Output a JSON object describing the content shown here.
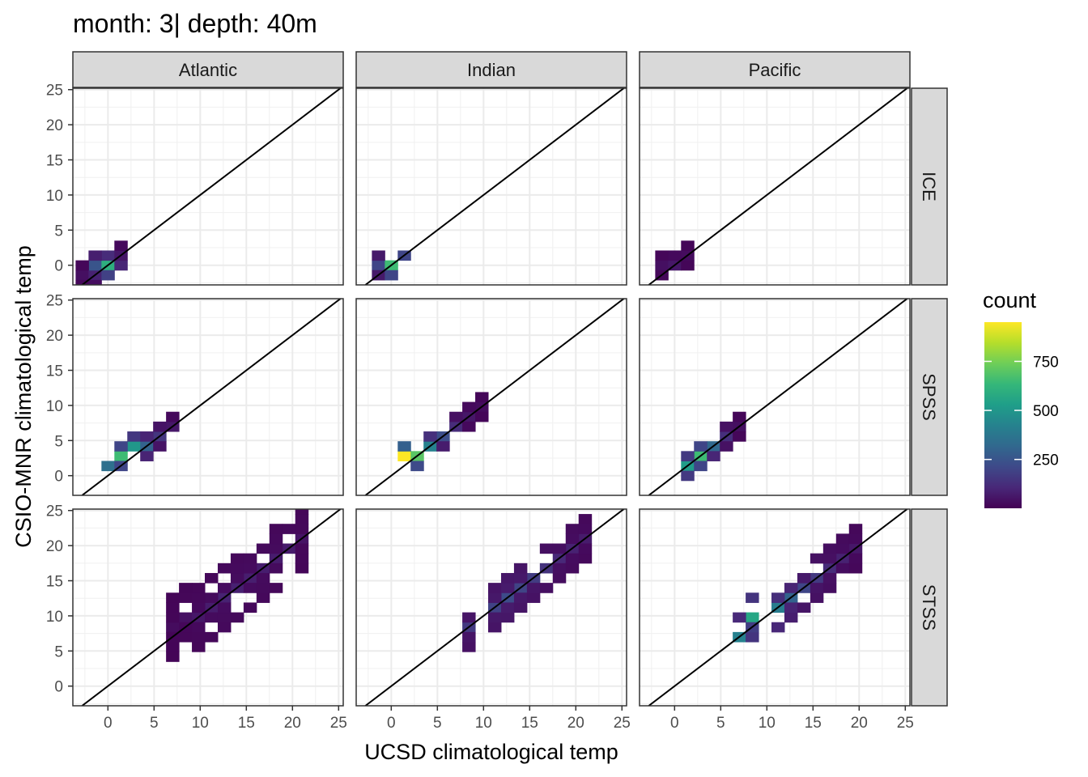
{
  "chart_data": {
    "type": "heatmap",
    "title": "month: 3| depth: 40m",
    "xlabel": "UCSD climatological temp",
    "ylabel": "CSIO-MNR climatological temp",
    "xlim": [
      -3.8,
      25.5
    ],
    "ylim": [
      -2.8,
      25.2
    ],
    "xticks": [
      0,
      5,
      10,
      15,
      20,
      25
    ],
    "yticks": [
      0,
      5,
      10,
      15,
      20,
      25
    ],
    "grid": true,
    "bin_width": 1.4,
    "reference_line": "y = x",
    "columns": [
      "Atlantic",
      "Indian",
      "Pacific"
    ],
    "rows": [
      "ICE",
      "SPSS",
      "STSS"
    ],
    "legend": {
      "title": "count",
      "position": "right",
      "range": [
        1,
        950
      ],
      "breaks": [
        250,
        500,
        750
      ],
      "colors": [
        "#440154",
        "#482878",
        "#3e4989",
        "#31688e",
        "#26828e",
        "#1f9e89",
        "#35b779",
        "#6ece58",
        "#b5de2b",
        "#fde725"
      ]
    },
    "panels": [
      {
        "column": "Atlantic",
        "row": "ICE",
        "samples": [
          {
            "x": -2.2,
            "y": -1.1,
            "count": 40
          },
          {
            "x": -0.8,
            "y": -1.1,
            "count": 90
          },
          {
            "x": -0.8,
            "y": 0.3,
            "count": 250
          },
          {
            "x": 0.6,
            "y": 0.3,
            "count": 600
          },
          {
            "x": 0.6,
            "y": 1.7,
            "count": 120
          },
          {
            "x": 2.0,
            "y": 0.3,
            "count": 100
          },
          {
            "x": 2.0,
            "y": 1.7,
            "count": 60
          }
        ]
      },
      {
        "column": "Indian",
        "row": "ICE",
        "samples": [
          {
            "x": -0.8,
            "y": -0.6,
            "count": 200
          },
          {
            "x": 0.6,
            "y": 0.4,
            "count": 650
          },
          {
            "x": 2.0,
            "y": 1.4,
            "count": 200
          }
        ]
      },
      {
        "column": "Pacific",
        "row": "ICE",
        "samples": [
          {
            "x": -0.8,
            "y": -0.3,
            "count": 40
          },
          {
            "x": 0.6,
            "y": 0.6,
            "count": 60
          },
          {
            "x": 2.0,
            "y": 1.4,
            "count": 30
          }
        ]
      },
      {
        "column": "Atlantic",
        "row": "SPSS",
        "samples": [
          {
            "x": 0.6,
            "y": 1.3,
            "count": 350
          },
          {
            "x": 2.0,
            "y": 2.5,
            "count": 650
          },
          {
            "x": 3.4,
            "y": 3.5,
            "count": 500
          },
          {
            "x": 4.8,
            "y": 4.6,
            "count": 300
          },
          {
            "x": 6.2,
            "y": 5.8,
            "count": 150
          },
          {
            "x": 7.6,
            "y": 7.2,
            "count": 60
          }
        ]
      },
      {
        "column": "Indian",
        "row": "SPSS",
        "samples": [
          {
            "x": 2.0,
            "y": 2.3,
            "count": 950
          },
          {
            "x": 3.4,
            "y": 3.3,
            "count": 700
          },
          {
            "x": 4.8,
            "y": 4.3,
            "count": 420
          },
          {
            "x": 6.2,
            "y": 5.7,
            "count": 230
          },
          {
            "x": 7.6,
            "y": 7.0,
            "count": 120
          },
          {
            "x": 9.0,
            "y": 8.4,
            "count": 60
          },
          {
            "x": 10.4,
            "y": 9.8,
            "count": 30
          }
        ]
      },
      {
        "column": "Pacific",
        "row": "SPSS",
        "samples": [
          {
            "x": 2.0,
            "y": 2.0,
            "count": 520
          },
          {
            "x": 3.4,
            "y": 3.3,
            "count": 650
          },
          {
            "x": 4.8,
            "y": 4.5,
            "count": 320
          },
          {
            "x": 6.2,
            "y": 5.8,
            "count": 130
          },
          {
            "x": 7.6,
            "y": 7.0,
            "count": 40
          }
        ]
      },
      {
        "column": "Atlantic",
        "row": "STSS",
        "samples": [
          {
            "x": 7.0,
            "y": 8.5,
            "count": 30
          },
          {
            "x": 10.0,
            "y": 10.0,
            "count": 60
          },
          {
            "x": 13.0,
            "y": 13.0,
            "count": 90
          },
          {
            "x": 16.0,
            "y": 16.0,
            "count": 80
          },
          {
            "x": 19.0,
            "y": 19.5,
            "count": 70
          },
          {
            "x": 21.0,
            "y": 21.0,
            "count": 50
          }
        ]
      },
      {
        "column": "Indian",
        "row": "STSS",
        "samples": [
          {
            "x": 9.0,
            "y": 9.0,
            "count": 160
          },
          {
            "x": 12.0,
            "y": 12.0,
            "count": 220
          },
          {
            "x": 15.0,
            "y": 15.0,
            "count": 170
          },
          {
            "x": 18.0,
            "y": 18.0,
            "count": 110
          },
          {
            "x": 21.0,
            "y": 21.0,
            "count": 70
          }
        ]
      },
      {
        "column": "Pacific",
        "row": "STSS",
        "samples": [
          {
            "x": 7.0,
            "y": 7.2,
            "count": 420
          },
          {
            "x": 9.0,
            "y": 9.2,
            "count": 560
          },
          {
            "x": 11.0,
            "y": 11.0,
            "count": 400
          },
          {
            "x": 14.0,
            "y": 14.0,
            "count": 200
          },
          {
            "x": 17.0,
            "y": 17.0,
            "count": 120
          },
          {
            "x": 20.0,
            "y": 20.0,
            "count": 60
          }
        ]
      }
    ]
  }
}
